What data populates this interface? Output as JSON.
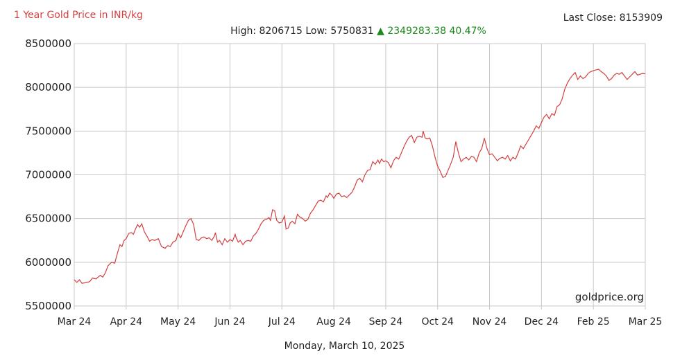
{
  "header": {
    "title": "1 Year Gold Price in INR/kg",
    "last_close_label": "Last Close:",
    "last_close_value": "8153909",
    "high_label": "High:",
    "high_value": "8206715",
    "low_label": "Low:",
    "low_value": "5750831",
    "change_arrow": "▲",
    "change_value": "2349283.38",
    "change_percent": "40.47%"
  },
  "footer": {
    "date": "Monday, March 10, 2025",
    "watermark": "goldprice.org"
  },
  "colors": {
    "line": "#d43f3f",
    "title": "#d43f3f",
    "change_up": "#1a8a1a",
    "grid": "#c8c8c8"
  },
  "chart_data": {
    "type": "line",
    "title": "1 Year Gold Price in INR/kg",
    "xlabel": "",
    "ylabel": "",
    "ylim": [
      5500000,
      8500000
    ],
    "y_ticks": [
      "8500000",
      "8000000",
      "7500000",
      "7000000",
      "6500000",
      "6000000",
      "5500000"
    ],
    "x_ticks": [
      "Mar 24",
      "Apr 24",
      "May 24",
      "Jun 24",
      "Jul 24",
      "Aug 24",
      "Sep 24",
      "Oct 24",
      "Nov 24",
      "Dec 24",
      "Feb 25",
      "Mar 25"
    ],
    "grid": true,
    "x_range": [
      0,
      11
    ],
    "series": [
      {
        "values": [
          [
            0.0,
            5800000
          ],
          [
            0.05,
            5770000
          ],
          [
            0.1,
            5800000
          ],
          [
            0.15,
            5760000
          ],
          [
            0.25,
            5770000
          ],
          [
            0.3,
            5780000
          ],
          [
            0.35,
            5820000
          ],
          [
            0.42,
            5810000
          ],
          [
            0.5,
            5850000
          ],
          [
            0.55,
            5830000
          ],
          [
            0.6,
            5880000
          ],
          [
            0.65,
            5960000
          ],
          [
            0.72,
            6000000
          ],
          [
            0.78,
            5990000
          ],
          [
            0.82,
            6080000
          ],
          [
            0.88,
            6200000
          ],
          [
            0.92,
            6180000
          ],
          [
            0.96,
            6250000
          ],
          [
            1.0,
            6270000
          ],
          [
            1.05,
            6330000
          ],
          [
            1.1,
            6340000
          ],
          [
            1.14,
            6320000
          ],
          [
            1.18,
            6380000
          ],
          [
            1.22,
            6430000
          ],
          [
            1.26,
            6400000
          ],
          [
            1.3,
            6440000
          ],
          [
            1.35,
            6350000
          ],
          [
            1.4,
            6300000
          ],
          [
            1.45,
            6240000
          ],
          [
            1.5,
            6260000
          ],
          [
            1.55,
            6250000
          ],
          [
            1.62,
            6270000
          ],
          [
            1.68,
            6180000
          ],
          [
            1.75,
            6160000
          ],
          [
            1.8,
            6190000
          ],
          [
            1.85,
            6180000
          ],
          [
            1.9,
            6230000
          ],
          [
            1.96,
            6250000
          ],
          [
            2.0,
            6330000
          ],
          [
            2.05,
            6280000
          ],
          [
            2.1,
            6350000
          ],
          [
            2.15,
            6420000
          ],
          [
            2.2,
            6480000
          ],
          [
            2.25,
            6500000
          ],
          [
            2.3,
            6430000
          ],
          [
            2.35,
            6260000
          ],
          [
            2.4,
            6250000
          ],
          [
            2.45,
            6280000
          ],
          [
            2.5,
            6290000
          ],
          [
            2.55,
            6270000
          ],
          [
            2.6,
            6280000
          ],
          [
            2.65,
            6250000
          ],
          [
            2.7,
            6300000
          ],
          [
            2.72,
            6340000
          ],
          [
            2.76,
            6230000
          ],
          [
            2.8,
            6250000
          ],
          [
            2.85,
            6200000
          ],
          [
            2.9,
            6270000
          ],
          [
            2.95,
            6230000
          ],
          [
            3.0,
            6260000
          ],
          [
            3.05,
            6240000
          ],
          [
            3.1,
            6320000
          ],
          [
            3.12,
            6280000
          ],
          [
            3.16,
            6230000
          ],
          [
            3.2,
            6250000
          ],
          [
            3.25,
            6200000
          ],
          [
            3.3,
            6240000
          ],
          [
            3.35,
            6250000
          ],
          [
            3.4,
            6240000
          ],
          [
            3.45,
            6300000
          ],
          [
            3.5,
            6330000
          ],
          [
            3.55,
            6380000
          ],
          [
            3.6,
            6440000
          ],
          [
            3.65,
            6480000
          ],
          [
            3.7,
            6490000
          ],
          [
            3.75,
            6510000
          ],
          [
            3.78,
            6480000
          ],
          [
            3.82,
            6600000
          ],
          [
            3.86,
            6590000
          ],
          [
            3.9,
            6480000
          ],
          [
            3.95,
            6450000
          ],
          [
            4.0,
            6460000
          ],
          [
            4.05,
            6530000
          ],
          [
            4.08,
            6380000
          ],
          [
            4.12,
            6390000
          ],
          [
            4.16,
            6450000
          ],
          [
            4.2,
            6470000
          ],
          [
            4.25,
            6440000
          ],
          [
            4.3,
            6550000
          ],
          [
            4.34,
            6520000
          ],
          [
            4.4,
            6500000
          ],
          [
            4.45,
            6470000
          ],
          [
            4.5,
            6490000
          ],
          [
            4.55,
            6560000
          ],
          [
            4.6,
            6600000
          ],
          [
            4.65,
            6650000
          ],
          [
            4.7,
            6700000
          ],
          [
            4.75,
            6710000
          ],
          [
            4.8,
            6690000
          ],
          [
            4.85,
            6760000
          ],
          [
            4.88,
            6740000
          ],
          [
            4.92,
            6790000
          ],
          [
            4.96,
            6770000
          ],
          [
            5.0,
            6730000
          ],
          [
            5.05,
            6780000
          ],
          [
            5.1,
            6790000
          ],
          [
            5.15,
            6750000
          ],
          [
            5.2,
            6760000
          ],
          [
            5.25,
            6740000
          ],
          [
            5.3,
            6770000
          ],
          [
            5.35,
            6800000
          ],
          [
            5.4,
            6860000
          ],
          [
            5.45,
            6940000
          ],
          [
            5.5,
            6960000
          ],
          [
            5.55,
            6920000
          ],
          [
            5.6,
            7000000
          ],
          [
            5.65,
            7050000
          ],
          [
            5.7,
            7060000
          ],
          [
            5.75,
            7150000
          ],
          [
            5.8,
            7120000
          ],
          [
            5.85,
            7170000
          ],
          [
            5.88,
            7130000
          ],
          [
            5.92,
            7180000
          ],
          [
            5.96,
            7150000
          ],
          [
            6.0,
            7160000
          ],
          [
            6.05,
            7140000
          ],
          [
            6.1,
            7080000
          ],
          [
            6.15,
            7160000
          ],
          [
            6.2,
            7200000
          ],
          [
            6.25,
            7180000
          ],
          [
            6.3,
            7250000
          ],
          [
            6.35,
            7320000
          ],
          [
            6.4,
            7380000
          ],
          [
            6.45,
            7430000
          ],
          [
            6.5,
            7450000
          ],
          [
            6.55,
            7370000
          ],
          [
            6.6,
            7430000
          ],
          [
            6.65,
            7440000
          ],
          [
            6.7,
            7430000
          ],
          [
            6.72,
            7500000
          ],
          [
            6.76,
            7420000
          ],
          [
            6.8,
            7410000
          ],
          [
            6.85,
            7420000
          ],
          [
            6.9,
            7330000
          ],
          [
            6.95,
            7200000
          ],
          [
            7.0,
            7100000
          ],
          [
            7.05,
            7040000
          ],
          [
            7.1,
            6970000
          ],
          [
            7.15,
            6980000
          ],
          [
            7.2,
            7050000
          ],
          [
            7.25,
            7120000
          ],
          [
            7.3,
            7200000
          ],
          [
            7.35,
            7380000
          ],
          [
            7.4,
            7250000
          ],
          [
            7.45,
            7150000
          ],
          [
            7.5,
            7180000
          ],
          [
            7.55,
            7200000
          ],
          [
            7.6,
            7170000
          ],
          [
            7.65,
            7210000
          ],
          [
            7.7,
            7200000
          ],
          [
            7.75,
            7150000
          ],
          [
            7.8,
            7250000
          ],
          [
            7.85,
            7300000
          ],
          [
            7.9,
            7420000
          ],
          [
            7.95,
            7300000
          ],
          [
            8.0,
            7230000
          ],
          [
            8.05,
            7240000
          ],
          [
            8.1,
            7200000
          ],
          [
            8.15,
            7160000
          ],
          [
            8.2,
            7190000
          ],
          [
            8.25,
            7200000
          ],
          [
            8.3,
            7180000
          ],
          [
            8.35,
            7220000
          ],
          [
            8.4,
            7160000
          ],
          [
            8.45,
            7200000
          ],
          [
            8.5,
            7180000
          ],
          [
            8.55,
            7250000
          ],
          [
            8.6,
            7330000
          ],
          [
            8.65,
            7300000
          ],
          [
            8.7,
            7350000
          ],
          [
            8.75,
            7400000
          ],
          [
            8.8,
            7450000
          ],
          [
            8.85,
            7500000
          ],
          [
            8.9,
            7560000
          ],
          [
            8.95,
            7530000
          ],
          [
            9.0,
            7600000
          ],
          [
            9.05,
            7660000
          ],
          [
            9.1,
            7690000
          ],
          [
            9.15,
            7640000
          ],
          [
            9.2,
            7700000
          ],
          [
            9.25,
            7680000
          ],
          [
            9.3,
            7780000
          ],
          [
            9.35,
            7800000
          ],
          [
            9.4,
            7870000
          ],
          [
            9.45,
            7980000
          ],
          [
            9.5,
            8050000
          ],
          [
            9.55,
            8100000
          ],
          [
            9.6,
            8140000
          ],
          [
            9.65,
            8170000
          ],
          [
            9.7,
            8090000
          ],
          [
            9.75,
            8130000
          ],
          [
            9.8,
            8100000
          ],
          [
            9.85,
            8120000
          ],
          [
            9.9,
            8160000
          ],
          [
            9.95,
            8180000
          ],
          [
            10.0,
            8190000
          ],
          [
            10.05,
            8200000
          ],
          [
            10.1,
            8207000
          ],
          [
            10.15,
            8180000
          ],
          [
            10.2,
            8160000
          ],
          [
            10.25,
            8130000
          ],
          [
            10.3,
            8080000
          ],
          [
            10.35,
            8100000
          ],
          [
            10.4,
            8140000
          ],
          [
            10.45,
            8160000
          ],
          [
            10.5,
            8150000
          ],
          [
            10.55,
            8170000
          ],
          [
            10.6,
            8130000
          ],
          [
            10.65,
            8090000
          ],
          [
            10.7,
            8120000
          ],
          [
            10.75,
            8150000
          ],
          [
            10.8,
            8180000
          ],
          [
            10.85,
            8140000
          ],
          [
            10.9,
            8150000
          ],
          [
            10.95,
            8160000
          ],
          [
            11.0,
            8153909
          ]
        ]
      }
    ]
  }
}
